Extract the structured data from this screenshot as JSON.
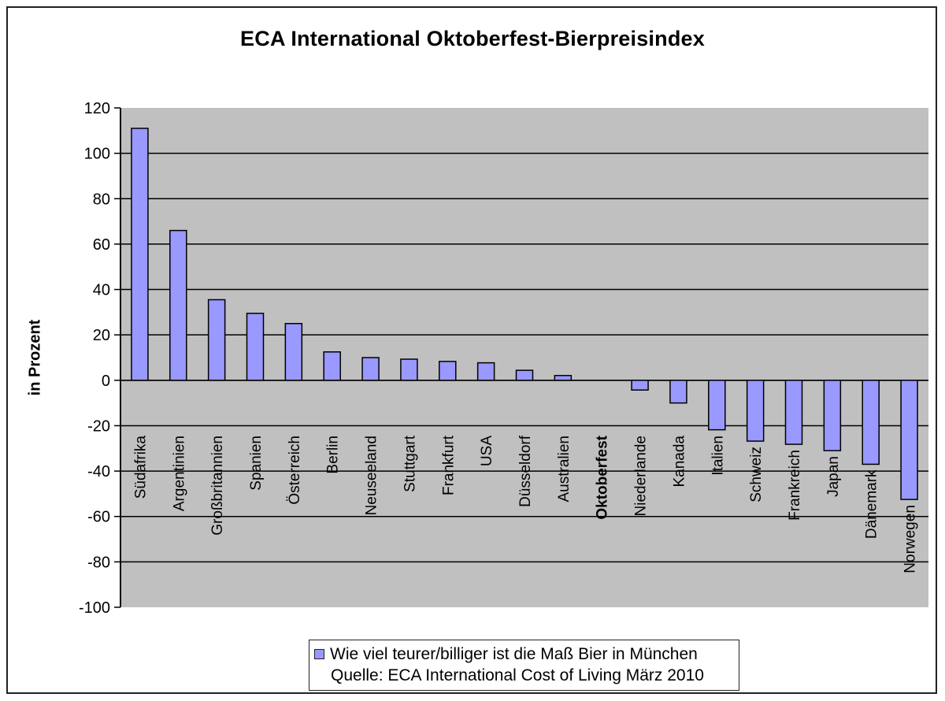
{
  "chart_data": {
    "type": "bar",
    "title": "ECA International Oktoberfest-Bierpreisindex",
    "xlabel": "",
    "ylabel": "in Prozent",
    "ylim": [
      -100,
      120
    ],
    "yticks": [
      120,
      100,
      80,
      60,
      40,
      20,
      0,
      -20,
      -40,
      -60,
      -80,
      -100
    ],
    "grid": true,
    "legend_position": "bottom",
    "categories": [
      "Südafrika",
      "Argentinien",
      "Großbritannien",
      "Spanien",
      "Österreich",
      "Berlin",
      "Neuseeland",
      "Stuttgart",
      "Frankfurt",
      "USA",
      "Düsseldorf",
      "Australien",
      "Oktoberfest",
      "Niederlande",
      "Kanada",
      "Italien",
      "Schweiz",
      "Frankreich",
      "Japan",
      "Dänemark",
      "Norwegen"
    ],
    "highlighted_category": "Oktoberfest",
    "series": [
      {
        "name": "Wie viel teurer/billiger ist die Maß Bier in München",
        "values": [
          111,
          66,
          35.5,
          29.5,
          25,
          12.5,
          10,
          9.3,
          8.3,
          7.7,
          4.4,
          2.1,
          0,
          -4.3,
          -10,
          -21.8,
          -26.8,
          -28.2,
          -31,
          -37,
          -52.5
        ],
        "color": "#9999ff"
      }
    ],
    "legend": {
      "entry": "Wie viel teurer/billiger ist die Maß Bier in München",
      "source": "Quelle: ECA International Cost of Living März 2010"
    },
    "colors": {
      "plot_background": "#c0c0c0",
      "bar_fill": "#9999ff",
      "bar_stroke": "#000000",
      "gridline": "#000000"
    }
  }
}
